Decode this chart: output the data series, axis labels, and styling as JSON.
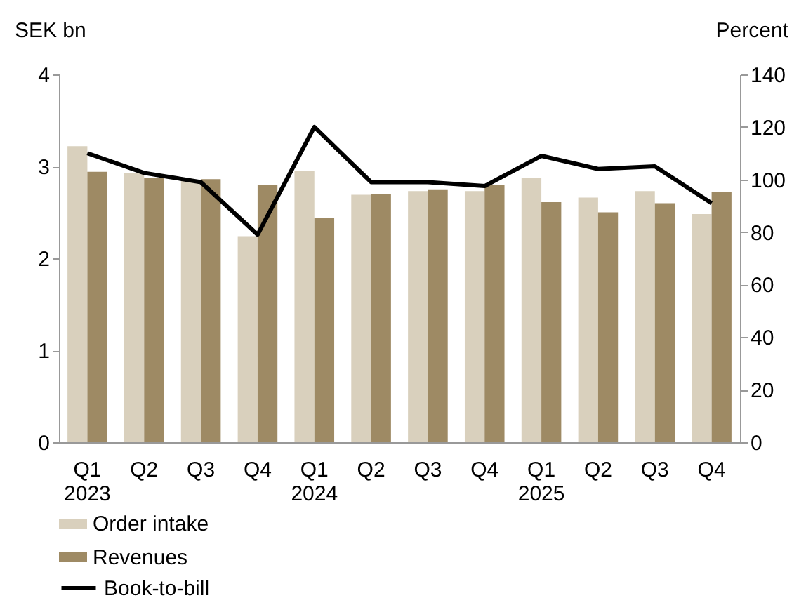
{
  "chart_data": {
    "type": "bar",
    "ylabel": "SEK bn",
    "y2label": "Percent",
    "categories": [
      "Q1\n2023",
      "Q2",
      "Q3",
      "Q4",
      "Q1\n2024",
      "Q2",
      "Q3",
      "Q4",
      "Q1\n2025",
      "Q2",
      "Q3",
      "Q4"
    ],
    "series": [
      {
        "name": "Order intake",
        "color": "#d9d0bd",
        "values": [
          3.22,
          2.93,
          2.84,
          2.24,
          2.95,
          2.69,
          2.73,
          2.73,
          2.87,
          2.66,
          2.73,
          2.48
        ]
      },
      {
        "name": "Revenues",
        "color": "#9e8a64",
        "values": [
          2.94,
          2.87,
          2.86,
          2.8,
          2.44,
          2.7,
          2.75,
          2.8,
          2.61,
          2.5,
          2.6,
          2.72
        ]
      },
      {
        "name": "Book-to-bill",
        "type": "line",
        "axis": "y2",
        "color": "#000000",
        "values": [
          110,
          102.5,
          99,
          79,
          120,
          99,
          99,
          97.5,
          109,
          104,
          105,
          91
        ]
      }
    ],
    "ylim": [
      0,
      4
    ],
    "yticks": [
      0,
      1,
      2,
      3,
      4
    ],
    "y2lim": [
      0,
      140
    ],
    "y2ticks": [
      0,
      20,
      40,
      60,
      80,
      100,
      120,
      140
    ],
    "grid": false,
    "legend": "bottom left"
  }
}
